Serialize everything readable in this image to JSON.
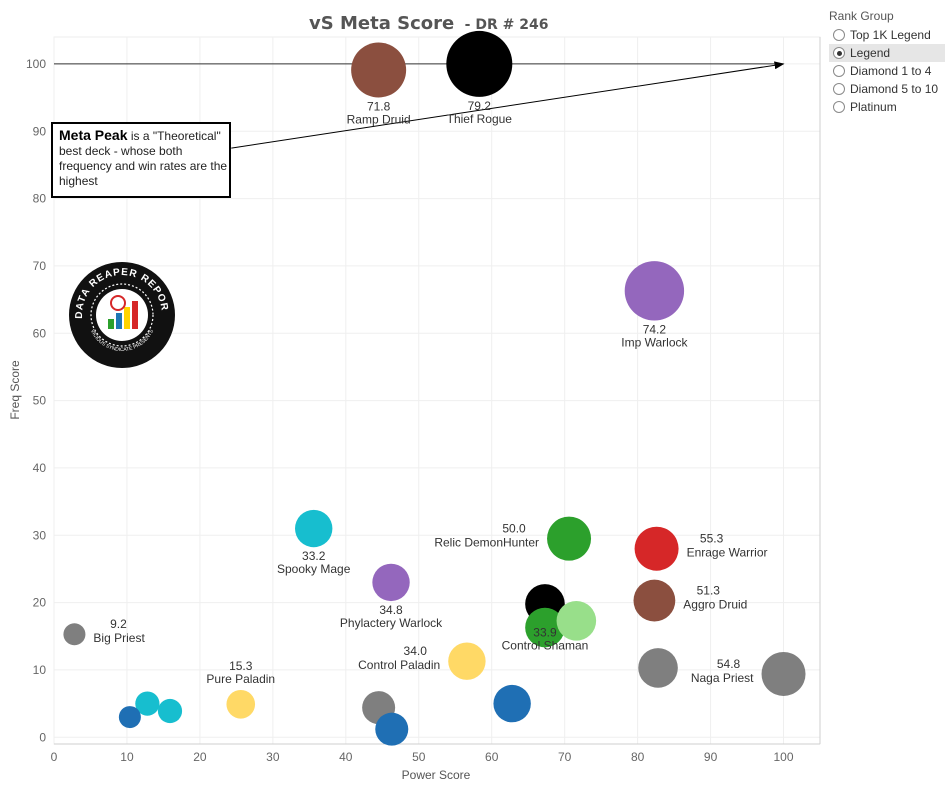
{
  "chart_data": {
    "type": "scatter",
    "title": "vS Meta Score",
    "subtitle": "- DR # 246",
    "xlabel": "Power Score",
    "ylabel": "Freq Score",
    "xlim": [
      0,
      105
    ],
    "ylim": [
      -1,
      104
    ],
    "x_ticks": [
      0,
      10,
      20,
      30,
      40,
      50,
      60,
      70,
      80,
      90,
      100
    ],
    "y_ticks": [
      0,
      10,
      20,
      30,
      40,
      50,
      60,
      70,
      80,
      90,
      100
    ],
    "grid": true,
    "reference_line_y": 100,
    "arrow": {
      "from": [
        24.3,
        87.5
      ],
      "to": [
        100,
        100
      ]
    },
    "points": [
      {
        "x": 44.5,
        "y": 99.1,
        "size": 2.5,
        "color": "#8b4f3f",
        "score": "71.8",
        "name": "Ramp Druid",
        "label_pos": "below"
      },
      {
        "x": 58.3,
        "y": 100.0,
        "size": 3.0,
        "color": "#000000",
        "score": "79.2",
        "name": "Thief Rogue",
        "label_pos": "below"
      },
      {
        "x": 82.3,
        "y": 66.3,
        "size": 2.7,
        "color": "#9467bd",
        "score": "74.2",
        "name": "Imp Warlock",
        "label_pos": "below"
      },
      {
        "x": 35.6,
        "y": 31.0,
        "size": 1.7,
        "color": "#17becf",
        "score": "33.2",
        "name": "Spooky Mage",
        "label_pos": "below"
      },
      {
        "x": 46.2,
        "y": 23.0,
        "size": 1.7,
        "color": "#9467bd",
        "score": "34.8",
        "name": "Phylactery Warlock",
        "label_pos": "below"
      },
      {
        "x": 70.6,
        "y": 29.5,
        "size": 2.0,
        "color": "#2ca02c",
        "score": "50.0",
        "name": "Relic DemonHunter",
        "label_pos": "left"
      },
      {
        "x": 82.6,
        "y": 28.0,
        "size": 2.0,
        "color": "#d62728",
        "score": "55.3",
        "name": "Enrage Warrior",
        "label_pos": "right"
      },
      {
        "x": 82.3,
        "y": 20.3,
        "size": 1.9,
        "color": "#8b4f3f",
        "score": "51.3",
        "name": "Aggro Druid",
        "label_pos": "right"
      },
      {
        "x": 67.3,
        "y": 19.8,
        "size": 1.8,
        "color": "#000000",
        "score": "33.9",
        "name": "Control Shaman",
        "label_pos": "below"
      },
      {
        "x": 67.3,
        "y": 16.3,
        "size": 1.8,
        "color": "#2ca02c",
        "score": "",
        "name": "",
        "label_pos": "none"
      },
      {
        "x": 71.6,
        "y": 17.3,
        "size": 1.8,
        "color": "#98df8a",
        "score": "",
        "name": "",
        "label_pos": "none"
      },
      {
        "x": 2.8,
        "y": 15.3,
        "size": 1.0,
        "color": "#7f7f7f",
        "score": "9.2",
        "name": "Big Priest",
        "label_pos": "right"
      },
      {
        "x": 56.6,
        "y": 11.3,
        "size": 1.7,
        "color": "#ffd966",
        "score": "34.0",
        "name": "Control Paladin",
        "label_pos": "left"
      },
      {
        "x": 82.8,
        "y": 10.3,
        "size": 1.8,
        "color": "#7f7f7f",
        "score": "",
        "name": "",
        "label_pos": "none"
      },
      {
        "x": 100.0,
        "y": 9.4,
        "size": 2.0,
        "color": "#7f7f7f",
        "score": "54.8",
        "name": "Naga Priest",
        "label_pos": "left"
      },
      {
        "x": 62.8,
        "y": 5.0,
        "size": 1.7,
        "color": "#1f6fb4",
        "score": "",
        "name": "",
        "label_pos": "none"
      },
      {
        "x": 25.6,
        "y": 4.9,
        "size": 1.3,
        "color": "#ffd966",
        "score": "15.3",
        "name": "Pure Paladin",
        "label_pos": "above"
      },
      {
        "x": 44.5,
        "y": 4.4,
        "size": 1.5,
        "color": "#7f7f7f",
        "score": "",
        "name": "",
        "label_pos": "none"
      },
      {
        "x": 46.3,
        "y": 1.2,
        "size": 1.5,
        "color": "#1f6fb4",
        "score": "",
        "name": "",
        "label_pos": "none"
      },
      {
        "x": 12.8,
        "y": 5.0,
        "size": 1.1,
        "color": "#17becf",
        "score": "",
        "name": "",
        "label_pos": "none"
      },
      {
        "x": 15.9,
        "y": 3.9,
        "size": 1.1,
        "color": "#17becf",
        "score": "",
        "name": "",
        "label_pos": "none"
      },
      {
        "x": 10.4,
        "y": 3.0,
        "size": 1.0,
        "color": "#1f6fb4",
        "score": "",
        "name": "",
        "label_pos": "none"
      }
    ]
  },
  "annotation": {
    "bold": "Meta Peak",
    "text": " is a \"Theoretical\" best deck - whose both frequency and win rates are the highest"
  },
  "badge": {
    "text_top": "DATA REAPER REPORT",
    "text_bottom": "VICIOUS SYNDICATE PRESENTS"
  },
  "legend": {
    "title": "Rank Group",
    "items": [
      {
        "label": "Top 1K Legend",
        "selected": false
      },
      {
        "label": "Legend",
        "selected": true
      },
      {
        "label": "Diamond 1 to 4",
        "selected": false
      },
      {
        "label": "Diamond 5 to 10",
        "selected": false
      },
      {
        "label": "Platinum",
        "selected": false
      }
    ]
  }
}
